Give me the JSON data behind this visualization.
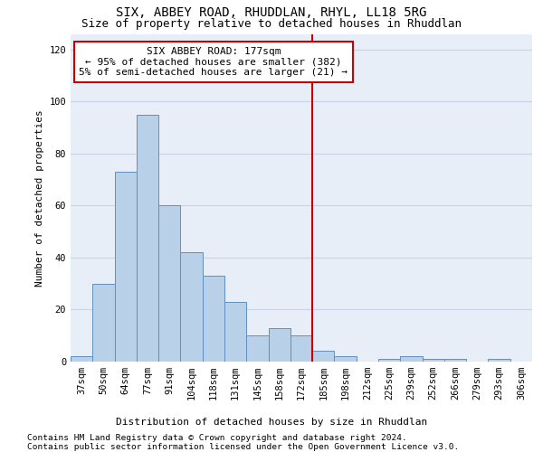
{
  "title": "SIX, ABBEY ROAD, RHUDDLAN, RHYL, LL18 5RG",
  "subtitle": "Size of property relative to detached houses in Rhuddlan",
  "xlabel_bottom": "Distribution of detached houses by size in Rhuddlan",
  "ylabel": "Number of detached properties",
  "footnote1": "Contains HM Land Registry data © Crown copyright and database right 2024.",
  "footnote2": "Contains public sector information licensed under the Open Government Licence v3.0.",
  "categories": [
    "37sqm",
    "50sqm",
    "64sqm",
    "77sqm",
    "91sqm",
    "104sqm",
    "118sqm",
    "131sqm",
    "145sqm",
    "158sqm",
    "172sqm",
    "185sqm",
    "198sqm",
    "212sqm",
    "225sqm",
    "239sqm",
    "252sqm",
    "266sqm",
    "279sqm",
    "293sqm",
    "306sqm"
  ],
  "values": [
    2,
    30,
    73,
    95,
    60,
    42,
    33,
    23,
    10,
    13,
    10,
    4,
    2,
    0,
    1,
    2,
    1,
    1,
    0,
    1,
    0
  ],
  "bar_color": "#b8d0e8",
  "bar_edge_color": "#6090c0",
  "vline_color": "#cc0000",
  "annotation_text": "SIX ABBEY ROAD: 177sqm\n← 95% of detached houses are smaller (382)\n5% of semi-detached houses are larger (21) →",
  "annotation_box_color": "#cc0000",
  "ylim": [
    0,
    126
  ],
  "yticks": [
    0,
    20,
    40,
    60,
    80,
    100,
    120
  ],
  "grid_color": "#c8d4e4",
  "bg_color": "#e8eef8",
  "title_fontsize": 10,
  "subtitle_fontsize": 9,
  "axis_label_fontsize": 8,
  "tick_fontsize": 7.5,
  "annotation_fontsize": 8,
  "footnote_fontsize": 6.8
}
